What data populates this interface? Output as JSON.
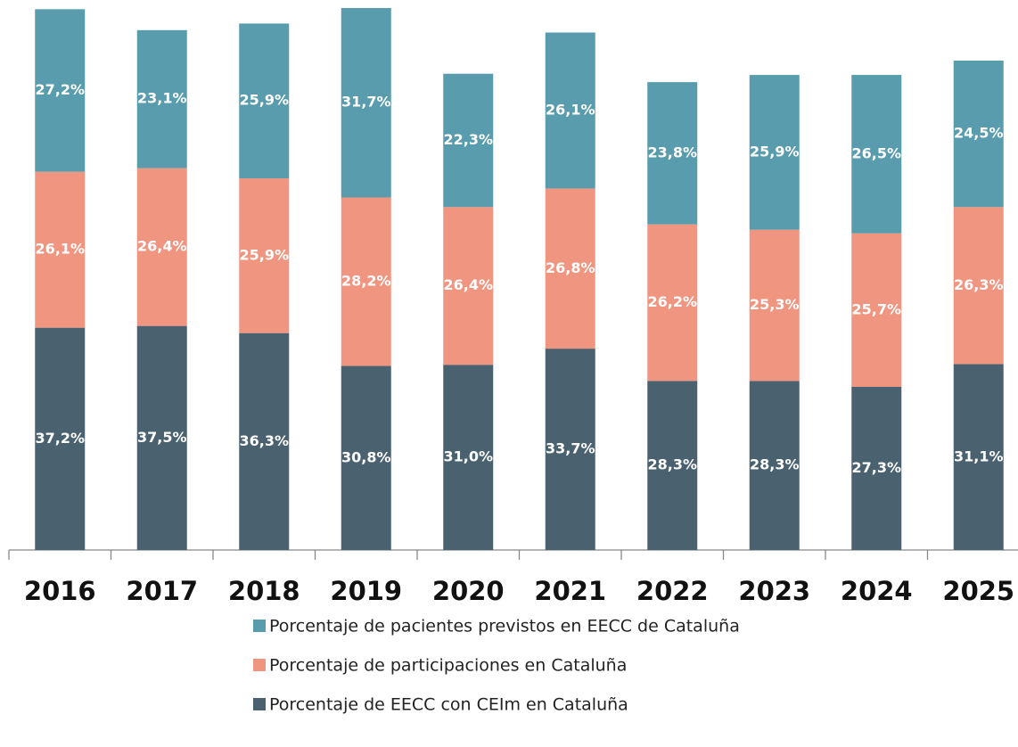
{
  "chart_data": {
    "type": "stacked_bar",
    "categories": [
      "2016",
      "2017",
      "2018",
      "2019",
      "2020",
      "2021",
      "2022",
      "2023",
      "2024",
      "2025"
    ],
    "series": [
      {
        "name": "Porcentaje de pacientes previstos en EECC de Cataluña",
        "color": "#589cad",
        "values": [
          27.2,
          23.1,
          25.9,
          31.7,
          22.3,
          26.1,
          23.8,
          25.9,
          26.5,
          24.5
        ],
        "value_labels": [
          "27,2%",
          "23,1%",
          "25,9%",
          "31,7%",
          "22,3%",
          "26,1%",
          "23,8%",
          "25,9%",
          "26,5%",
          "24,5%"
        ]
      },
      {
        "name": "Porcentaje de participaciones en Cataluña",
        "color": "#f09580",
        "values": [
          26.1,
          26.4,
          25.9,
          28.2,
          26.4,
          26.8,
          26.2,
          25.3,
          25.7,
          26.3
        ],
        "value_labels": [
          "26,1%",
          "26,4%",
          "25,9%",
          "28,2%",
          "26,4%",
          "26,8%",
          "26,2%",
          "25,3%",
          "25,7%",
          "26,3%"
        ]
      },
      {
        "name": "Porcentaje de EECC con CEIm en Cataluña",
        "color": "#4a6270",
        "values": [
          37.2,
          37.5,
          36.3,
          30.8,
          31.0,
          33.7,
          28.3,
          28.3,
          27.3,
          31.1
        ],
        "value_labels": [
          "37,2%",
          "37,5%",
          "36,3%",
          "30,8%",
          "31,0%",
          "33,7%",
          "28,3%",
          "28,3%",
          "27,3%",
          "31,1%"
        ]
      }
    ]
  }
}
